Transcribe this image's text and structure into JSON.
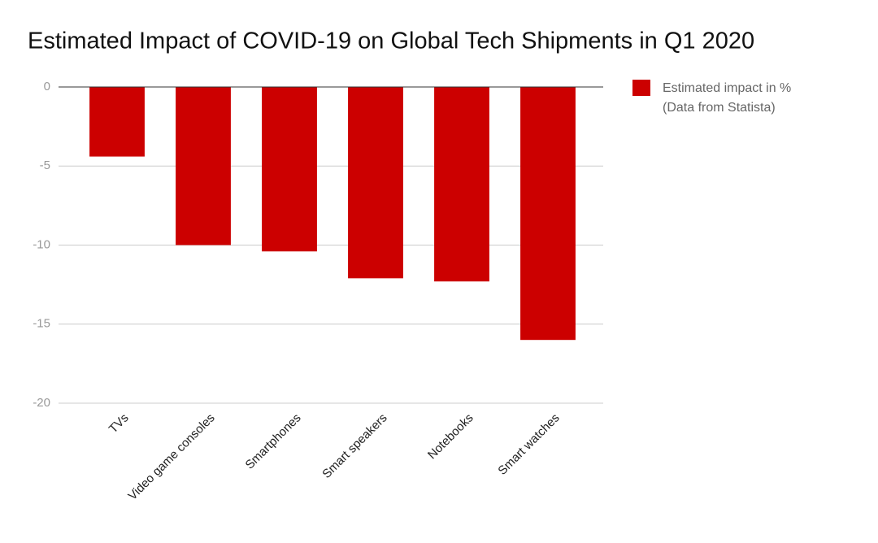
{
  "chart_data": {
    "type": "bar",
    "title": "Estimated Impact of COVID-19 on Global Tech Shipments in Q1 2020",
    "categories": [
      "TVs",
      "Video game consoles",
      "Smartphones",
      "Smart speakers",
      "Notebooks",
      "Smart watches"
    ],
    "series": [
      {
        "name": "Estimated impact in % (Data from Statista)",
        "color": "#cc0000",
        "values": [
          -4.4,
          -10,
          -10.4,
          -12.1,
          -12.3,
          -16
        ]
      }
    ],
    "ylim": [
      -20,
      0
    ],
    "yticks": [
      0,
      -5,
      -10,
      -15,
      -20
    ],
    "grid": true,
    "legend": "right"
  }
}
